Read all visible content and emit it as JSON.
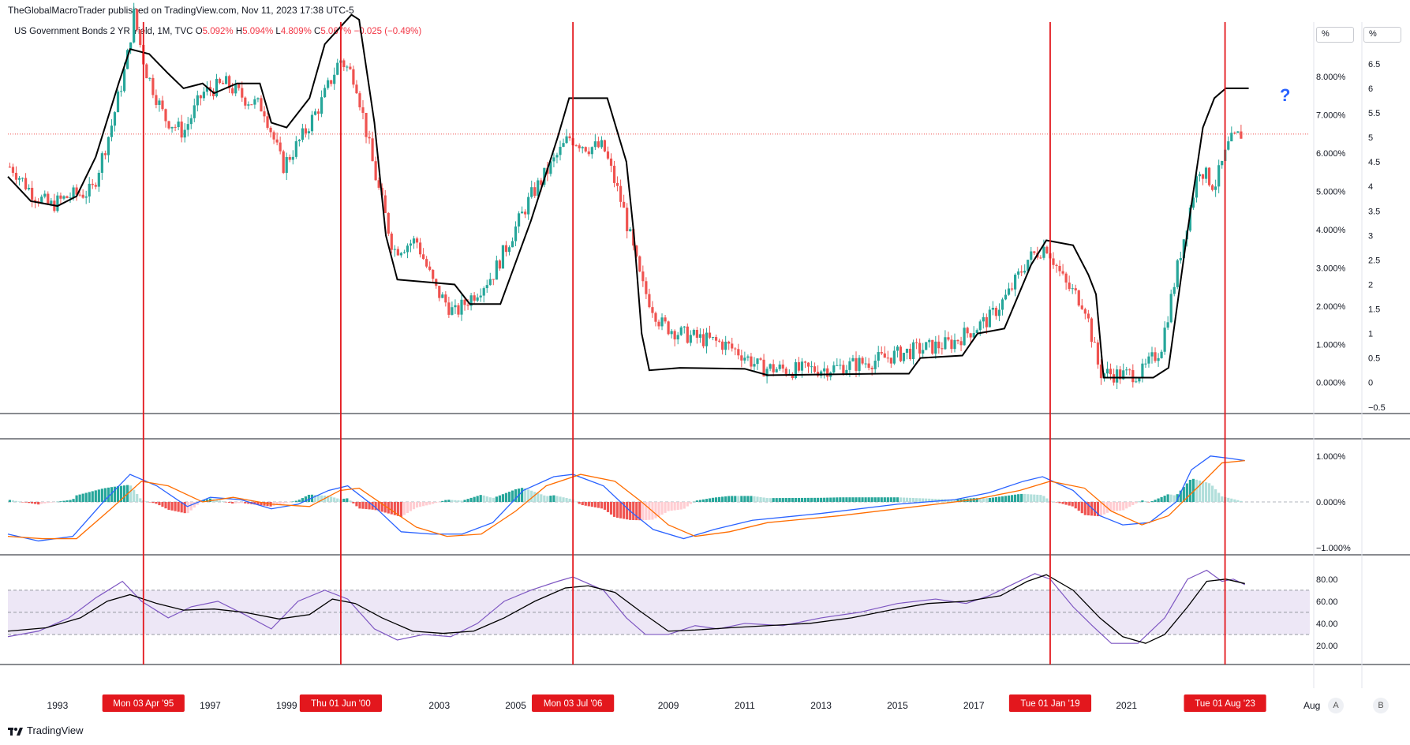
{
  "header": {
    "published": "TheGlobalMacroTrader published on TradingView.com, Nov 11, 2023 17:38 UTC-5"
  },
  "legend": {
    "symbol": "US Government Bonds 2 YR Yield, 1M, TVC",
    "o_label": "O",
    "o_value": "5.092%",
    "h_label": "H",
    "h_value": "5.094%",
    "l_label": "L",
    "l_value": "4.809%",
    "c_label": "C",
    "c_value": "5.067%",
    "change": "−0.025 (−0.49%)"
  },
  "unit_buttons": [
    "%",
    "%"
  ],
  "scale_buttons": [
    "A",
    "B"
  ],
  "footer": {
    "brand": "TradingView"
  },
  "annotation": "?",
  "colors": {
    "up": "#26a69a",
    "down": "#ef5350",
    "trend": "#000000",
    "vline": "#e3171d",
    "macd": "#2962ff",
    "signal": "#ff6d00",
    "rsi": "#7e57c2",
    "rsi_band": "#ede7f6"
  },
  "chart_data": [
    {
      "type": "line",
      "name": "price",
      "x_range": [
        1991.7,
        2025.8
      ],
      "y_right_outer": {
        "ylim": [
          -0.6,
          6.9
        ],
        "ticks": [
          "6.5",
          "6",
          "5.5",
          "5",
          "4.5",
          "4",
          "3.5",
          "3",
          "2.5",
          "2",
          "1.5",
          "1",
          "0.5",
          "0",
          "−0.5"
        ]
      },
      "y_right_inner": {
        "ylim": [
          -0.6,
          6.9
        ],
        "ticks": [
          "8.000%",
          "7.000%",
          "6.000%",
          "5.000%",
          "4.000%",
          "3.000%",
          "2.000%",
          "1.000%",
          "0.000%"
        ]
      },
      "last_price": 5.067,
      "candles_path": [
        [
          1991.8,
          4.4
        ],
        [
          1992.3,
          3.9
        ],
        [
          1992.8,
          3.6
        ],
        [
          1993.3,
          3.8
        ],
        [
          1993.9,
          3.9
        ],
        [
          1994.4,
          5.2
        ],
        [
          1994.8,
          6.5
        ],
        [
          1995.0,
          7.5
        ],
        [
          1995.3,
          6.4
        ],
        [
          1995.8,
          5.4
        ],
        [
          1996.3,
          5.1
        ],
        [
          1996.8,
          5.9
        ],
        [
          1997.4,
          6.1
        ],
        [
          1997.9,
          5.8
        ],
        [
          1998.4,
          5.6
        ],
        [
          1998.9,
          4.4
        ],
        [
          1999.4,
          5.0
        ],
        [
          1999.9,
          5.7
        ],
        [
          2000.4,
          6.6
        ],
        [
          2000.8,
          6.2
        ],
        [
          2001.3,
          4.3
        ],
        [
          2001.8,
          2.7
        ],
        [
          2002.4,
          2.9
        ],
        [
          2002.9,
          1.9
        ],
        [
          2003.4,
          1.4
        ],
        [
          2003.9,
          1.8
        ],
        [
          2004.4,
          2.2
        ],
        [
          2004.9,
          3.0
        ],
        [
          2005.4,
          3.8
        ],
        [
          2005.9,
          4.4
        ],
        [
          2006.4,
          5.0
        ],
        [
          2006.9,
          4.8
        ],
        [
          2007.3,
          4.8
        ],
        [
          2007.8,
          3.6
        ],
        [
          2008.3,
          2.0
        ],
        [
          2008.8,
          1.2
        ],
        [
          2009.3,
          1.0
        ],
        [
          2009.8,
          0.9
        ],
        [
          2010.4,
          0.8
        ],
        [
          2010.9,
          0.6
        ],
        [
          2011.4,
          0.3
        ],
        [
          2012.4,
          0.25
        ],
        [
          2013.4,
          0.3
        ],
        [
          2014.4,
          0.45
        ],
        [
          2015.4,
          0.65
        ],
        [
          2016.4,
          0.8
        ],
        [
          2017.4,
          1.3
        ],
        [
          2017.9,
          1.8
        ],
        [
          2018.4,
          2.5
        ],
        [
          2018.9,
          2.8
        ],
        [
          2019.4,
          2.0
        ],
        [
          2019.9,
          1.6
        ],
        [
          2020.3,
          0.2
        ],
        [
          2020.9,
          0.15
        ],
        [
          2021.4,
          0.2
        ],
        [
          2021.9,
          0.7
        ],
        [
          2022.4,
          2.6
        ],
        [
          2022.9,
          4.4
        ],
        [
          2023.3,
          4.0
        ],
        [
          2023.7,
          4.9
        ],
        [
          2024.0,
          5.07
        ]
      ],
      "trend_line": [
        [
          1991.7,
          4.2
        ],
        [
          1992.3,
          3.7
        ],
        [
          1993.0,
          3.6
        ],
        [
          1993.5,
          3.8
        ],
        [
          1994.0,
          4.6
        ],
        [
          1994.6,
          6.1
        ],
        [
          1994.9,
          6.8
        ],
        [
          1995.4,
          6.7
        ],
        [
          1995.9,
          6.3
        ],
        [
          1996.3,
          6.0
        ],
        [
          1996.8,
          6.1
        ],
        [
          1997.1,
          5.9
        ],
        [
          1997.7,
          6.1
        ],
        [
          1998.3,
          6.1
        ],
        [
          1998.6,
          5.3
        ],
        [
          1999.0,
          5.2
        ],
        [
          1999.6,
          5.8
        ],
        [
          2000.0,
          6.9
        ],
        [
          2000.7,
          7.5
        ],
        [
          2000.9,
          7.4
        ],
        [
          2001.3,
          5.3
        ],
        [
          2001.6,
          3.0
        ],
        [
          2001.9,
          2.1
        ],
        [
          2003.4,
          2.0
        ],
        [
          2003.8,
          1.6
        ],
        [
          2004.6,
          1.6
        ],
        [
          2005.4,
          3.3
        ],
        [
          2006.1,
          5.0
        ],
        [
          2006.4,
          5.8
        ],
        [
          2007.4,
          5.8
        ],
        [
          2007.9,
          4.5
        ],
        [
          2008.1,
          3.0
        ],
        [
          2008.3,
          1.0
        ],
        [
          2008.5,
          0.25
        ],
        [
          2009.3,
          0.3
        ],
        [
          2011.0,
          0.28
        ],
        [
          2011.6,
          0.15
        ],
        [
          2014.6,
          0.18
        ],
        [
          2015.3,
          0.18
        ],
        [
          2015.6,
          0.5
        ],
        [
          2016.7,
          0.55
        ],
        [
          2017.1,
          1.0
        ],
        [
          2017.8,
          1.1
        ],
        [
          2018.5,
          2.4
        ],
        [
          2018.9,
          2.9
        ],
        [
          2019.6,
          2.8
        ],
        [
          2020.0,
          2.2
        ],
        [
          2020.2,
          1.8
        ],
        [
          2020.4,
          0.1
        ],
        [
          2021.7,
          0.1
        ],
        [
          2022.1,
          0.3
        ],
        [
          2022.6,
          3.1
        ],
        [
          2023.0,
          5.2
        ],
        [
          2023.3,
          5.8
        ],
        [
          2023.6,
          6.0
        ],
        [
          2024.2,
          6.0
        ]
      ]
    },
    {
      "type": "bar",
      "name": "macd",
      "y_ticks": [
        "1.000%",
        "0.000%",
        "−1.000%"
      ],
      "ylim": [
        -1.1,
        1.1
      ],
      "macd_line": [
        [
          1991.7,
          -0.7
        ],
        [
          1992.5,
          -0.85
        ],
        [
          1993.4,
          -0.75
        ],
        [
          1994.2,
          0.0
        ],
        [
          1994.9,
          0.6
        ],
        [
          1995.6,
          0.35
        ],
        [
          1996.4,
          -0.1
        ],
        [
          1997.0,
          0.1
        ],
        [
          1997.8,
          0.05
        ],
        [
          1998.6,
          -0.15
        ],
        [
          1999.3,
          -0.05
        ],
        [
          2000.1,
          0.25
        ],
        [
          2000.6,
          0.35
        ],
        [
          2001.3,
          -0.1
        ],
        [
          2002.0,
          -0.65
        ],
        [
          2002.8,
          -0.7
        ],
        [
          2003.6,
          -0.7
        ],
        [
          2004.4,
          -0.45
        ],
        [
          2005.2,
          0.25
        ],
        [
          2006.0,
          0.55
        ],
        [
          2006.5,
          0.6
        ],
        [
          2007.3,
          0.35
        ],
        [
          2008.0,
          -0.2
        ],
        [
          2008.6,
          -0.6
        ],
        [
          2009.4,
          -0.8
        ],
        [
          2010.2,
          -0.6
        ],
        [
          2011.2,
          -0.4
        ],
        [
          2013.0,
          -0.25
        ],
        [
          2015.0,
          -0.05
        ],
        [
          2016.5,
          0.05
        ],
        [
          2017.4,
          0.2
        ],
        [
          2018.3,
          0.45
        ],
        [
          2018.8,
          0.55
        ],
        [
          2019.6,
          0.25
        ],
        [
          2020.3,
          -0.3
        ],
        [
          2020.9,
          -0.5
        ],
        [
          2021.6,
          -0.45
        ],
        [
          2022.3,
          0.0
        ],
        [
          2022.7,
          0.7
        ],
        [
          2023.2,
          1.0
        ],
        [
          2023.7,
          0.95
        ],
        [
          2024.1,
          0.9
        ]
      ],
      "signal_line": [
        [
          1991.7,
          -0.75
        ],
        [
          1992.6,
          -0.8
        ],
        [
          1993.5,
          -0.8
        ],
        [
          1994.4,
          -0.15
        ],
        [
          1995.2,
          0.45
        ],
        [
          1995.9,
          0.35
        ],
        [
          1996.8,
          0.0
        ],
        [
          1997.6,
          0.1
        ],
        [
          1998.6,
          -0.05
        ],
        [
          1999.6,
          -0.1
        ],
        [
          2000.4,
          0.25
        ],
        [
          2000.9,
          0.3
        ],
        [
          2001.6,
          -0.1
        ],
        [
          2002.4,
          -0.55
        ],
        [
          2003.2,
          -0.75
        ],
        [
          2004.1,
          -0.7
        ],
        [
          2005.0,
          -0.2
        ],
        [
          2005.8,
          0.35
        ],
        [
          2006.7,
          0.6
        ],
        [
          2007.6,
          0.45
        ],
        [
          2008.3,
          0.0
        ],
        [
          2009.0,
          -0.5
        ],
        [
          2009.7,
          -0.75
        ],
        [
          2010.6,
          -0.65
        ],
        [
          2011.6,
          -0.45
        ],
        [
          2013.5,
          -0.3
        ],
        [
          2015.5,
          -0.1
        ],
        [
          2017.0,
          0.05
        ],
        [
          2018.2,
          0.25
        ],
        [
          2019.0,
          0.45
        ],
        [
          2019.9,
          0.3
        ],
        [
          2020.6,
          -0.2
        ],
        [
          2021.4,
          -0.5
        ],
        [
          2022.1,
          -0.3
        ],
        [
          2022.9,
          0.35
        ],
        [
          2023.5,
          0.85
        ],
        [
          2024.1,
          0.9
        ]
      ]
    },
    {
      "type": "line",
      "name": "rsi",
      "y_ticks": [
        "80.00",
        "60.00",
        "40.00",
        "20.00"
      ],
      "ylim": [
        10,
        92
      ],
      "band": [
        30,
        70
      ],
      "rsi_line": [
        [
          1991.7,
          28
        ],
        [
          1992.5,
          33
        ],
        [
          1993.3,
          45
        ],
        [
          1994.0,
          63
        ],
        [
          1994.7,
          78
        ],
        [
          1995.2,
          60
        ],
        [
          1995.9,
          45
        ],
        [
          1996.5,
          55
        ],
        [
          1997.2,
          60
        ],
        [
          1997.9,
          48
        ],
        [
          1998.6,
          35
        ],
        [
          1999.3,
          60
        ],
        [
          2000.0,
          70
        ],
        [
          2000.6,
          62
        ],
        [
          2001.3,
          35
        ],
        [
          2001.9,
          25
        ],
        [
          2002.6,
          30
        ],
        [
          2003.3,
          28
        ],
        [
          2004.0,
          40
        ],
        [
          2004.7,
          60
        ],
        [
          2005.4,
          70
        ],
        [
          2006.1,
          78
        ],
        [
          2006.5,
          82
        ],
        [
          2007.3,
          70
        ],
        [
          2007.9,
          45
        ],
        [
          2008.4,
          30
        ],
        [
          2009.0,
          30
        ],
        [
          2009.7,
          38
        ],
        [
          2010.3,
          35
        ],
        [
          2011.0,
          40
        ],
        [
          2012.0,
          38
        ],
        [
          2013.0,
          45
        ],
        [
          2014.0,
          50
        ],
        [
          2015.0,
          58
        ],
        [
          2016.0,
          62
        ],
        [
          2016.8,
          58
        ],
        [
          2017.4,
          65
        ],
        [
          2018.0,
          75
        ],
        [
          2018.6,
          85
        ],
        [
          2019.0,
          80
        ],
        [
          2019.6,
          55
        ],
        [
          2020.1,
          38
        ],
        [
          2020.6,
          22
        ],
        [
          2021.3,
          22
        ],
        [
          2022.0,
          45
        ],
        [
          2022.6,
          80
        ],
        [
          2023.1,
          88
        ],
        [
          2023.5,
          78
        ],
        [
          2023.8,
          80
        ],
        [
          2024.1,
          75
        ]
      ],
      "rsi_ma": [
        [
          1991.7,
          33
        ],
        [
          1992.7,
          36
        ],
        [
          1993.6,
          45
        ],
        [
          1994.3,
          60
        ],
        [
          1994.9,
          66
        ],
        [
          1995.6,
          58
        ],
        [
          1996.3,
          52
        ],
        [
          1997.1,
          53
        ],
        [
          1997.9,
          50
        ],
        [
          1998.8,
          44
        ],
        [
          1999.6,
          48
        ],
        [
          2000.2,
          62
        ],
        [
          2000.8,
          58
        ],
        [
          2001.5,
          45
        ],
        [
          2002.3,
          33
        ],
        [
          2003.1,
          31
        ],
        [
          2003.9,
          33
        ],
        [
          2004.7,
          45
        ],
        [
          2005.5,
          60
        ],
        [
          2006.3,
          72
        ],
        [
          2006.9,
          74
        ],
        [
          2007.6,
          68
        ],
        [
          2008.3,
          50
        ],
        [
          2009.0,
          33
        ],
        [
          2009.7,
          34
        ],
        [
          2010.6,
          36
        ],
        [
          2011.6,
          38
        ],
        [
          2012.7,
          40
        ],
        [
          2013.8,
          45
        ],
        [
          2014.8,
          52
        ],
        [
          2015.8,
          58
        ],
        [
          2016.8,
          60
        ],
        [
          2017.7,
          65
        ],
        [
          2018.4,
          78
        ],
        [
          2018.9,
          84
        ],
        [
          2019.6,
          70
        ],
        [
          2020.3,
          45
        ],
        [
          2020.9,
          28
        ],
        [
          2021.5,
          22
        ],
        [
          2022.0,
          30
        ],
        [
          2022.6,
          55
        ],
        [
          2023.1,
          78
        ],
        [
          2023.6,
          80
        ],
        [
          2024.1,
          76
        ]
      ]
    }
  ],
  "x_axis": {
    "ticks": [
      {
        "label": "1993",
        "x": 1993.0
      },
      {
        "label": "1997",
        "x": 1997.0
      },
      {
        "label": "1999",
        "x": 1999.0
      },
      {
        "label": "2003",
        "x": 2003.0
      },
      {
        "label": "2005",
        "x": 2005.0
      },
      {
        "label": "2009",
        "x": 2009.0
      },
      {
        "label": "2011",
        "x": 2011.0
      },
      {
        "label": "2013",
        "x": 2013.0
      },
      {
        "label": "2015",
        "x": 2015.0
      },
      {
        "label": "2017",
        "x": 2017.0
      },
      {
        "label": "2021",
        "x": 2021.0
      }
    ],
    "truncated_label": "Aug",
    "markers": [
      {
        "label": "Mon 03 Apr '95",
        "x": 1995.25
      },
      {
        "label": "Thu 01 Jun '00",
        "x": 2000.42
      },
      {
        "label": "Mon 03 Jul '06",
        "x": 2006.5
      },
      {
        "label": "Tue 01 Jan '19",
        "x": 2019.0
      },
      {
        "label": "Tue 01 Aug '23",
        "x": 2023.58
      }
    ]
  }
}
